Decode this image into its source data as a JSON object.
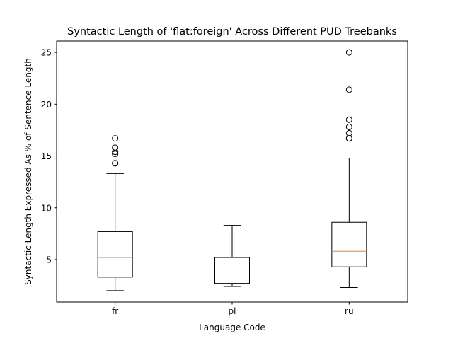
{
  "chart_data": {
    "type": "box",
    "title": "Syntactic Length of 'flat:foreign' Across Different PUD Treebanks",
    "xlabel": "Language Code",
    "ylabel": "Syntactic Length Expressed As % of Sentence Length",
    "categories": [
      "fr",
      "pl",
      "ru"
    ],
    "ylim": [
      0.9,
      26.1
    ],
    "yticks": [
      5,
      10,
      15,
      20,
      25
    ],
    "ytick_labels": [
      "5",
      "10",
      "15",
      "20",
      "25"
    ],
    "grid": false,
    "legend": "none",
    "boxes": [
      {
        "category": "fr",
        "whisker_low": 2.0,
        "q1": 3.3,
        "median": 5.2,
        "q3": 7.7,
        "whisker_high": 13.3,
        "outliers": [
          14.3,
          14.3,
          15.2,
          15.4,
          15.8,
          16.7
        ]
      },
      {
        "category": "pl",
        "whisker_low": 2.4,
        "q1": 2.7,
        "median": 3.6,
        "q3": 5.2,
        "whisker_high": 8.3,
        "outliers": []
      },
      {
        "category": "ru",
        "whisker_low": 2.3,
        "q1": 4.3,
        "median": 5.8,
        "q3": 8.6,
        "whisker_high": 14.8,
        "outliers": [
          16.7,
          16.7,
          17.2,
          17.8,
          18.5,
          21.4,
          25.0
        ]
      }
    ],
    "colors": {
      "box": "#000000",
      "median": "#ff7f0e",
      "outlier": "#000000"
    }
  }
}
